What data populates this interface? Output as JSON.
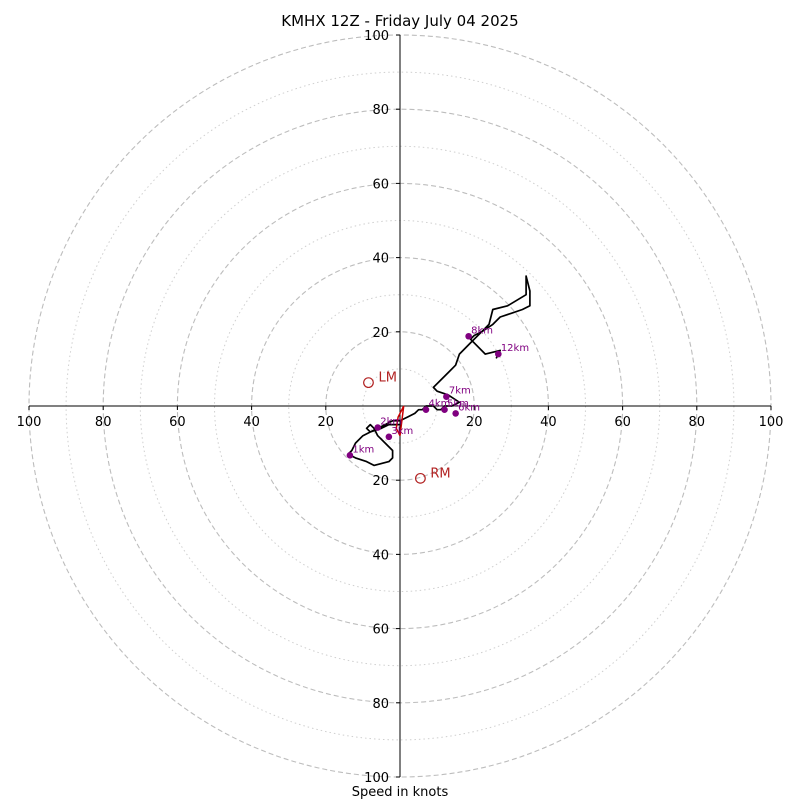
{
  "chart_data": {
    "type": "hodograph",
    "title": "KMHX 12Z - Friday July 04 2025",
    "xlabel": "Speed in knots",
    "ylabel": "",
    "xlim": [
      -100,
      100
    ],
    "ylim": [
      -100,
      100
    ],
    "rings_major": [
      20,
      40,
      60,
      80,
      100
    ],
    "rings_minor": [
      10,
      30,
      50,
      70,
      90
    ],
    "x_ticks": [
      {
        "value": -100,
        "label": "100"
      },
      {
        "value": -80,
        "label": "80"
      },
      {
        "value": -60,
        "label": "60"
      },
      {
        "value": -40,
        "label": "40"
      },
      {
        "value": -20,
        "label": "20"
      },
      {
        "value": 20,
        "label": "20"
      },
      {
        "value": 40,
        "label": "40"
      },
      {
        "value": 60,
        "label": "60"
      },
      {
        "value": 80,
        "label": "80"
      },
      {
        "value": 100,
        "label": "100"
      }
    ],
    "y_ticks": [
      {
        "value": 100,
        "label": "100"
      },
      {
        "value": 80,
        "label": "80"
      },
      {
        "value": 60,
        "label": "60"
      },
      {
        "value": 40,
        "label": "40"
      },
      {
        "value": 20,
        "label": "20"
      },
      {
        "value": -20,
        "label": "20"
      },
      {
        "value": -40,
        "label": "40"
      },
      {
        "value": -60,
        "label": "60"
      },
      {
        "value": -80,
        "label": "80"
      },
      {
        "value": -100,
        "label": "100"
      }
    ],
    "hodograph": {
      "name": "",
      "color": "#000000",
      "u": [
        0,
        -1,
        -3,
        -5,
        -8,
        -10,
        -12,
        -13,
        -14,
        -12,
        -9,
        -7,
        -3,
        -2,
        -2,
        -4,
        -6,
        -7,
        -8,
        -9,
        -8,
        -6,
        -4,
        -2,
        0,
        2,
        4,
        5,
        6,
        7,
        9,
        10,
        11,
        12,
        14,
        16,
        13,
        10,
        9,
        11,
        13,
        15,
        16,
        19,
        22,
        25,
        27,
        30,
        33,
        35,
        35,
        34,
        34,
        29,
        25,
        24,
        22,
        20,
        19,
        23,
        27,
        26
      ],
      "v": [
        -5,
        -5,
        -5,
        -6,
        -7,
        -8,
        -10,
        -12,
        -13,
        -14,
        -15,
        -16,
        -15,
        -14,
        -12,
        -10,
        -8,
        -6,
        -5,
        -6,
        -7,
        -6,
        -5,
        -4,
        -4,
        -3,
        -2,
        -1,
        -1,
        0,
        0,
        -1,
        -1,
        0,
        0,
        1,
        3,
        4,
        5,
        7,
        9,
        11,
        14,
        17,
        20,
        22,
        24,
        25,
        26,
        27,
        31,
        35,
        30,
        27,
        26,
        22,
        20,
        19,
        18,
        14,
        15,
        13
      ]
    },
    "height_markers": [
      {
        "label": "1km",
        "u": -13.5,
        "v": -13.3
      },
      {
        "label": "2km",
        "u": -6,
        "v": -5.8
      },
      {
        "label": "3km",
        "u": -3,
        "v": -8.3
      },
      {
        "label": "4km",
        "u": 7,
        "v": -1
      },
      {
        "label": "5km",
        "u": 12,
        "v": -1
      },
      {
        "label": "6km",
        "u": 15,
        "v": -2
      },
      {
        "label": "7km",
        "u": 12.5,
        "v": 2.5
      },
      {
        "label": "8km",
        "u": 18.5,
        "v": 18.8
      },
      {
        "label": "12km",
        "u": 26.5,
        "v": 14
      }
    ],
    "storm_motions": [
      {
        "label": "LM",
        "u": -8.5,
        "v": 6.3
      },
      {
        "label": "RM",
        "u": 5.5,
        "v": -19.5
      }
    ],
    "shear_vector_color": "#cc0000",
    "shear_vector": {
      "u": [
        0,
        -1,
        -0.5,
        0.5,
        1,
        0
      ],
      "v": [
        -8,
        -6,
        -3,
        -1,
        0,
        -8
      ]
    },
    "colors": {
      "hodograph": "#000000",
      "height_markers": "#800080",
      "storm_motion": "#b22222",
      "rings": "#bdbdbd"
    }
  }
}
